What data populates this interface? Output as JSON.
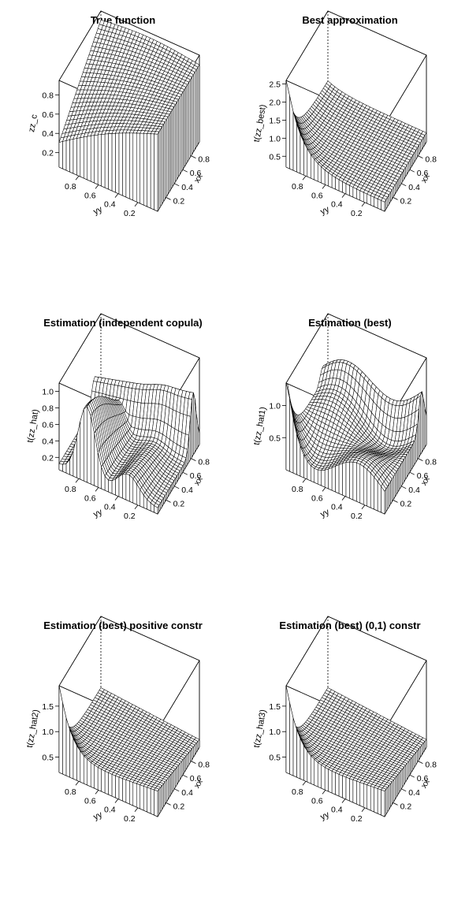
{
  "chart_data": [
    {
      "type": "surface3d",
      "title": "True function",
      "xlabel": "xx",
      "ylabel": "yy",
      "zlabel": "zz_c",
      "x_ticks": [
        "0.2",
        "0.4",
        "0.6",
        "0.8"
      ],
      "y_ticks": [
        "0.2",
        "0.4",
        "0.6",
        "0.8"
      ],
      "z_ticks": [
        "0.2",
        "0.4",
        "0.6",
        "0.8"
      ],
      "xlim": [
        0,
        1
      ],
      "ylim": [
        0,
        1
      ],
      "zlim": [
        0.05,
        0.95
      ],
      "shape": "smooth"
    },
    {
      "type": "surface3d",
      "title": "Best approximation",
      "xlabel": "xx",
      "ylabel": "yy",
      "zlabel": "t(zz_best)",
      "x_ticks": [
        "0.2",
        "0.4",
        "0.6",
        "0.8"
      ],
      "y_ticks": [
        "0.2",
        "0.4",
        "0.6",
        "0.8"
      ],
      "z_ticks": [
        "0.5",
        "1.0",
        "1.5",
        "2.0",
        "2.5"
      ],
      "xlim": [
        0,
        1
      ],
      "ylim": [
        0,
        1
      ],
      "zlim": [
        0.2,
        2.6
      ],
      "shape": "corner-peak"
    },
    {
      "type": "surface3d",
      "title": "Estimation (independent copula)",
      "xlabel": "xx",
      "ylabel": "yy",
      "zlabel": "t(zz_hat)",
      "x_ticks": [
        "0.2",
        "0.4",
        "0.6",
        "0.8"
      ],
      "y_ticks": [
        "0.2",
        "0.4",
        "0.6",
        "0.8"
      ],
      "z_ticks": [
        "0.2",
        "0.4",
        "0.6",
        "0.8",
        "1.0"
      ],
      "xlim": [
        0,
        1
      ],
      "ylim": [
        0,
        1
      ],
      "zlim": [
        0.05,
        1.1
      ],
      "shape": "ridges"
    },
    {
      "type": "surface3d",
      "title": "Estimation (best)",
      "xlabel": "xx",
      "ylabel": "yy",
      "zlabel": "t(zz_hat1)",
      "x_ticks": [
        "0.2",
        "0.4",
        "0.6",
        "0.8"
      ],
      "y_ticks": [
        "0.2",
        "0.4",
        "0.6",
        "0.8"
      ],
      "z_ticks": [
        "0.5",
        "1.0"
      ],
      "xlim": [
        0,
        1
      ],
      "ylim": [
        0,
        1
      ],
      "zlim": [
        0.0,
        1.35
      ],
      "shape": "wavy-corner"
    },
    {
      "type": "surface3d",
      "title": "Estimation (best) positive constr",
      "xlabel": "xx",
      "ylabel": "yy",
      "zlabel": "t(zz_hat2)",
      "x_ticks": [
        "0.2",
        "0.4",
        "0.6",
        "0.8"
      ],
      "y_ticks": [
        "0.2",
        "0.4",
        "0.6",
        "0.8"
      ],
      "z_ticks": [
        "0.5",
        "1.0",
        "1.5"
      ],
      "xlim": [
        0,
        1
      ],
      "ylim": [
        0,
        1
      ],
      "zlim": [
        0.2,
        1.9
      ],
      "shape": "corner-peak-soft"
    },
    {
      "type": "surface3d",
      "title": "Estimation (best) (0,1) constr",
      "xlabel": "xx",
      "ylabel": "yy",
      "zlabel": "t(zz_hat3)",
      "x_ticks": [
        "0.2",
        "0.4",
        "0.6",
        "0.8"
      ],
      "y_ticks": [
        "0.2",
        "0.4",
        "0.6",
        "0.8"
      ],
      "z_ticks": [
        "0.5",
        "1.0",
        "1.5"
      ],
      "xlim": [
        0,
        1
      ],
      "ylim": [
        0,
        1
      ],
      "zlim": [
        0.2,
        1.9
      ],
      "shape": "corner-peak-soft"
    }
  ]
}
